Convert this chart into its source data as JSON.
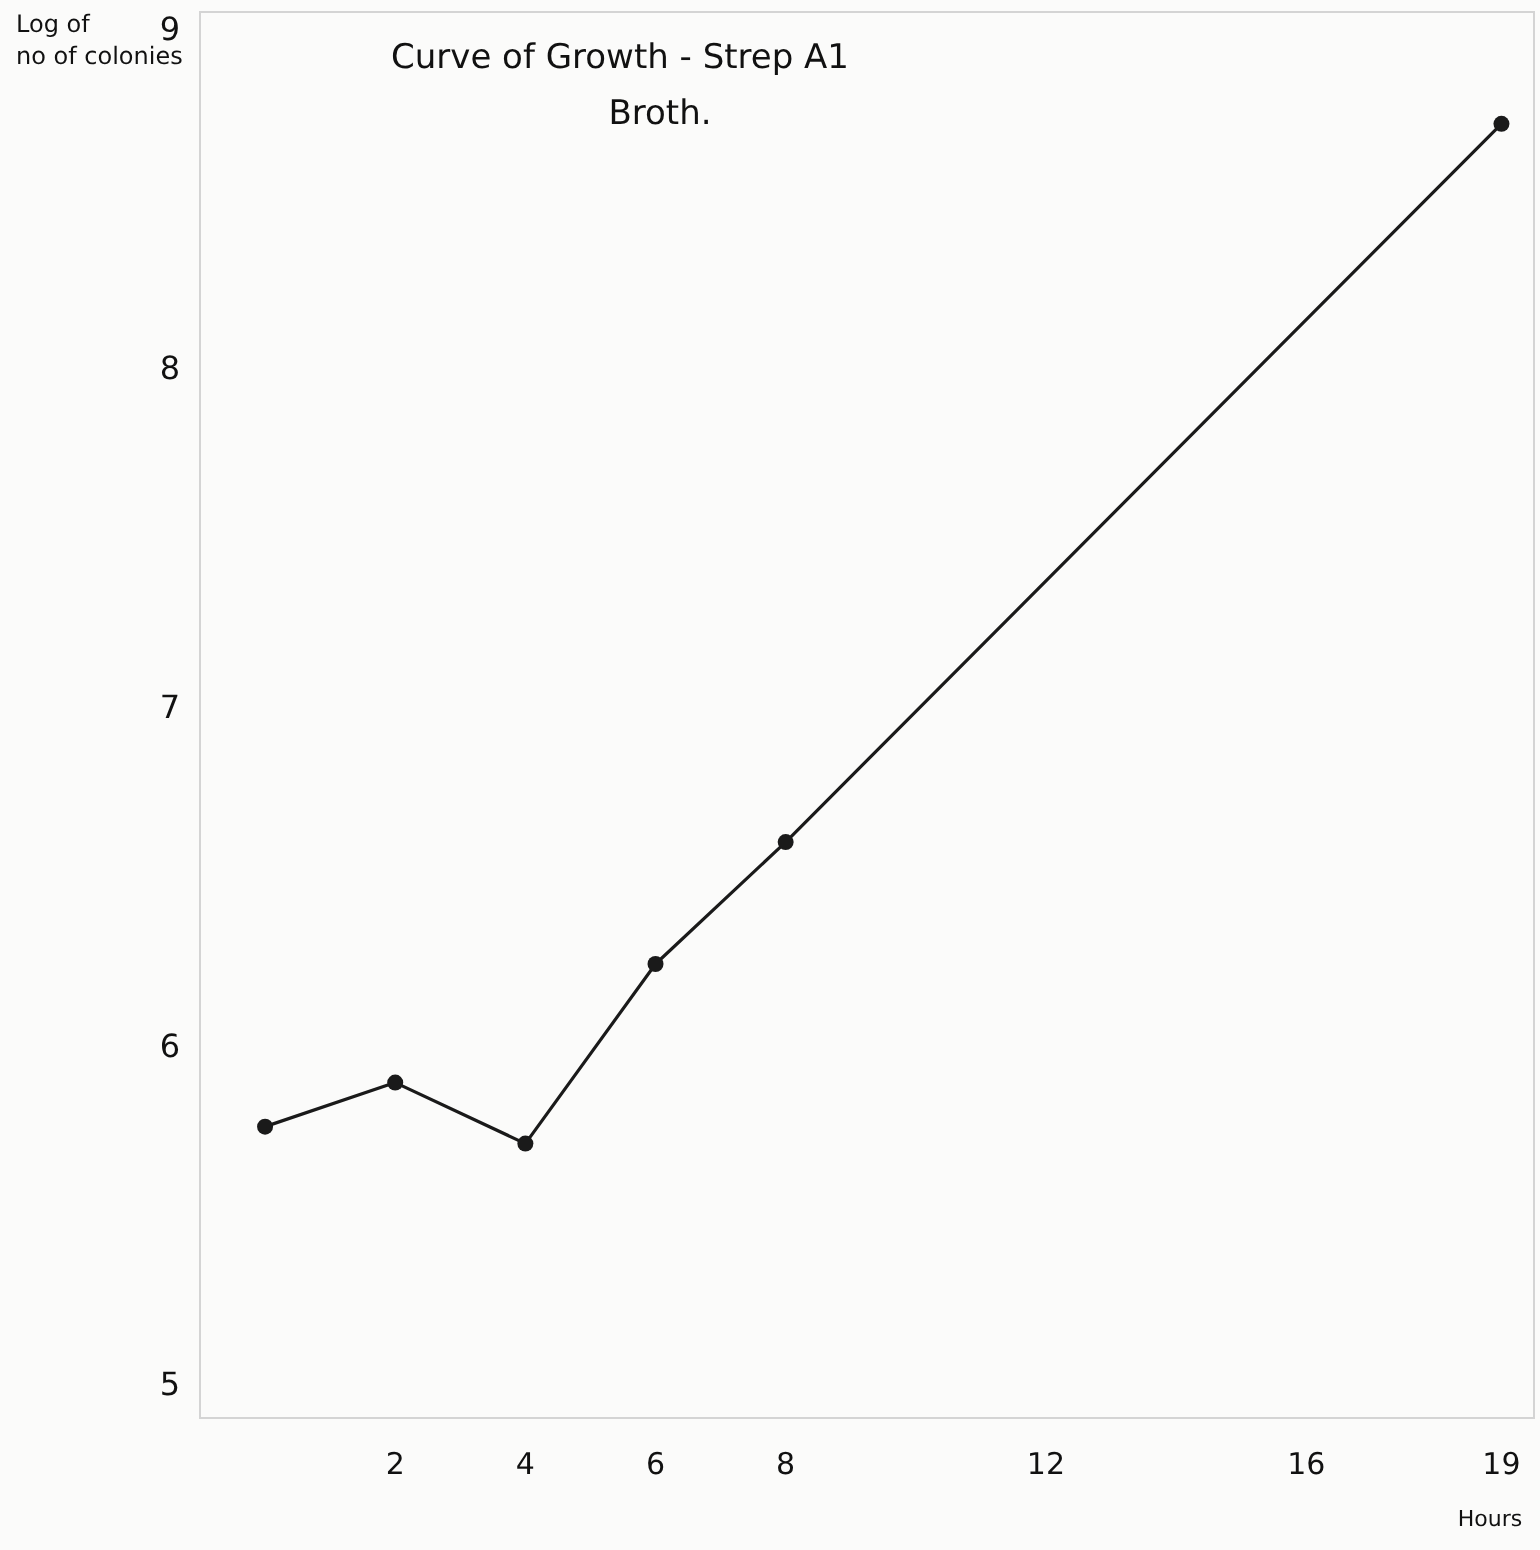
{
  "chart_data": {
    "type": "line",
    "title": "Curve of Growth - Strep A1",
    "subtitle": "Broth.",
    "xlabel": "Hours",
    "ylabel": "Log of no of colonies",
    "x": [
      0,
      2,
      4,
      6,
      8,
      19
    ],
    "series": [
      {
        "color": "#1a1a1a",
        "values": [
          5.76,
          5.89,
          5.71,
          6.24,
          6.6,
          8.72
        ]
      }
    ],
    "xlim": [
      -1,
      19.5
    ],
    "xticks": [
      2,
      4,
      6,
      8,
      12,
      16,
      19
    ],
    "ylim": [
      4.9,
      9.05
    ],
    "yticks": [
      5,
      6,
      7,
      8,
      9
    ],
    "marker": "circle",
    "line_style": "solid",
    "grid": false
  }
}
